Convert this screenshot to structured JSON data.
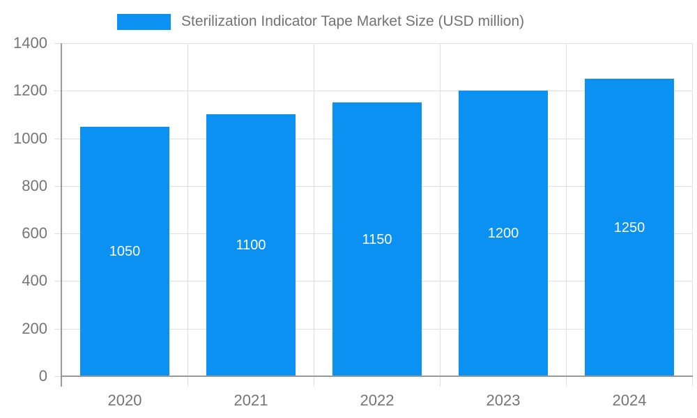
{
  "chart_data": {
    "type": "bar",
    "title": "Sterilization Indicator Tape Market Size (USD million)",
    "categories": [
      "2020",
      "2021",
      "2022",
      "2023",
      "2024"
    ],
    "series": [
      {
        "name": "Sterilization Indicator Tape Market Size (USD million)",
        "values": [
          1050,
          1100,
          1150,
          1200,
          1250
        ]
      }
    ],
    "bar_value_labels": [
      "1050",
      "1100",
      "1150",
      "1200",
      "1250"
    ],
    "xlabel": "",
    "ylabel": "",
    "ylim": [
      0,
      1400
    ],
    "yticks": [
      0,
      200,
      400,
      600,
      800,
      1000,
      1200,
      1400
    ],
    "ytick_labels": [
      "0",
      "200",
      "400",
      "600",
      "800",
      "1000",
      "1200",
      "1400"
    ],
    "grid": true,
    "legend_position": "top-center"
  },
  "legend": {
    "label": "Sterilization Indicator Tape Market Size (USD million)"
  },
  "colors": {
    "bar": "#0a91f2",
    "grid": "#e0e0e0",
    "axis": "#999999",
    "axis_tick_text": "#757575",
    "legend_text": "#737373",
    "bar_value_text": "#ffffff",
    "background": "#ffffff"
  }
}
